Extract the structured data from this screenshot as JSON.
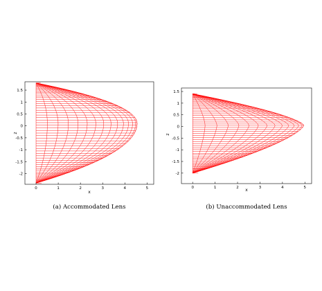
{
  "panels": [
    {
      "caption": "(a) Accommodated Lens",
      "xlabel": "x",
      "ylabel": "z",
      "xlim": [
        -0.5,
        5.3
      ],
      "ylim": [
        -2.45,
        1.85
      ],
      "xticks": [
        "0",
        "1",
        "2",
        "3",
        "4",
        "5"
      ],
      "yticks": [
        "1.5",
        "1",
        "0.5",
        "0",
        "-0.5",
        "-1",
        "-1.5",
        "-2"
      ],
      "mesh_color": "#ff0000",
      "lens_shape": {
        "z_top": 1.8,
        "z_bottom": -2.4,
        "x_apex": 4.55,
        "z_apex": 0.1,
        "curvature_exp": 2.0
      }
    },
    {
      "caption": "(b) Unaccommodated Lens",
      "xlabel": "x",
      "ylabel": "z",
      "xlim": [
        -0.5,
        5.3
      ],
      "ylim": [
        -2.45,
        1.65
      ],
      "xticks": [
        "0",
        "1",
        "2",
        "3",
        "4",
        "5"
      ],
      "yticks": [
        "1.5",
        "1",
        "0.5",
        "0",
        "-0.5",
        "-1",
        "-1.5",
        "-2"
      ],
      "mesh_color": "#ff0000",
      "lens_shape": {
        "z_top": 1.4,
        "z_bottom": -2.0,
        "x_apex": 4.95,
        "z_apex": 0.05,
        "curvature_exp": 1.45
      }
    }
  ]
}
